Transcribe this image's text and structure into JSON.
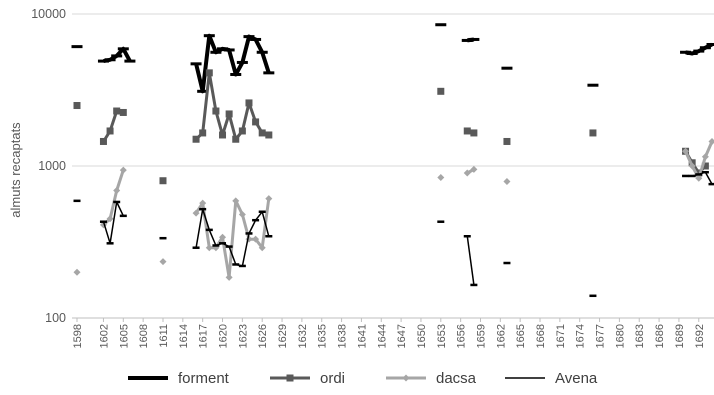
{
  "chart_data": {
    "type": "line",
    "ylabel": "almuts recaptats",
    "yscale": "log",
    "ylim": [
      100,
      10000
    ],
    "yticks": [
      "100",
      "1000",
      "10000"
    ],
    "xlim": [
      1598,
      1694
    ],
    "xtick_labels": [
      "1598",
      "1602",
      "1605",
      "1608",
      "1611",
      "1614",
      "1617",
      "1620",
      "1623",
      "1626",
      "1629",
      "1632",
      "1635",
      "1638",
      "1641",
      "1644",
      "1647",
      "1650",
      "1653",
      "1656",
      "1659",
      "1662",
      "1665",
      "1668",
      "1671",
      "1674",
      "1677",
      "1680",
      "1683",
      "1686",
      "1689",
      "1692"
    ],
    "grid": true,
    "legend_position": "bottom",
    "series": [
      {
        "name": "forment",
        "color": "#000000",
        "marker": "dash",
        "points": [
          [
            1598,
            6100
          ],
          [
            1602,
            4900
          ],
          [
            1603,
            5000
          ],
          [
            1604,
            5300
          ],
          [
            1605,
            5900
          ],
          [
            1606,
            4900
          ],
          [
            1616,
            4700
          ],
          [
            1617,
            3100
          ],
          [
            1618,
            7200
          ],
          [
            1619,
            5600
          ],
          [
            1620,
            5900
          ],
          [
            1621,
            5800
          ],
          [
            1622,
            4000
          ],
          [
            1623,
            4800
          ],
          [
            1624,
            7100
          ],
          [
            1625,
            6800
          ],
          [
            1626,
            5600
          ],
          [
            1627,
            4100
          ],
          [
            1653,
            8500
          ],
          [
            1657,
            6700
          ],
          [
            1658,
            6800
          ],
          [
            1663,
            4400
          ],
          [
            1676,
            3400
          ],
          [
            1690,
            5600
          ],
          [
            1691,
            5500
          ],
          [
            1692,
            5700
          ],
          [
            1693,
            6000
          ],
          [
            1694,
            6300
          ]
        ]
      },
      {
        "name": "ordi",
        "color": "#595959",
        "marker": "square",
        "points": [
          [
            1598,
            2500
          ],
          [
            1602,
            1450
          ],
          [
            1603,
            1700
          ],
          [
            1604,
            2300
          ],
          [
            1605,
            2250
          ],
          [
            1611,
            800
          ],
          [
            1616,
            1500
          ],
          [
            1617,
            1650
          ],
          [
            1618,
            4100
          ],
          [
            1619,
            2300
          ],
          [
            1620,
            1600
          ],
          [
            1621,
            2200
          ],
          [
            1622,
            1500
          ],
          [
            1623,
            1700
          ],
          [
            1624,
            2600
          ],
          [
            1625,
            1950
          ],
          [
            1626,
            1650
          ],
          [
            1627,
            1600
          ],
          [
            1653,
            3100
          ],
          [
            1657,
            1700
          ],
          [
            1658,
            1650
          ],
          [
            1663,
            1450
          ],
          [
            1676,
            1650
          ],
          [
            1690,
            1250
          ],
          [
            1691,
            1050
          ],
          [
            1692,
            900
          ],
          [
            1693,
            1000
          ]
        ]
      },
      {
        "name": "dacsa",
        "color": "#a6a6a6",
        "marker": "diamond",
        "points": [
          [
            1598,
            200
          ],
          [
            1602,
            410
          ],
          [
            1603,
            450
          ],
          [
            1604,
            690
          ],
          [
            1605,
            940
          ],
          [
            1611,
            235
          ],
          [
            1616,
            490
          ],
          [
            1617,
            570
          ],
          [
            1618,
            290
          ],
          [
            1619,
            290
          ],
          [
            1620,
            340
          ],
          [
            1621,
            185
          ],
          [
            1622,
            590
          ],
          [
            1623,
            480
          ],
          [
            1624,
            330
          ],
          [
            1625,
            330
          ],
          [
            1626,
            290
          ],
          [
            1627,
            610
          ],
          [
            1653,
            840
          ],
          [
            1657,
            900
          ],
          [
            1658,
            950
          ],
          [
            1663,
            790
          ],
          [
            1690,
            1250
          ],
          [
            1691,
            1000
          ],
          [
            1692,
            830
          ],
          [
            1693,
            1150
          ],
          [
            1694,
            1450
          ]
        ]
      },
      {
        "name": "Avena",
        "color": "#000000",
        "marker": "dash",
        "points": [
          [
            1598,
            590
          ],
          [
            1602,
            430
          ],
          [
            1603,
            310
          ],
          [
            1604,
            580
          ],
          [
            1605,
            470
          ],
          [
            1611,
            335
          ],
          [
            1616,
            290
          ],
          [
            1617,
            520
          ],
          [
            1618,
            380
          ],
          [
            1619,
            300
          ],
          [
            1620,
            310
          ],
          [
            1621,
            295
          ],
          [
            1622,
            225
          ],
          [
            1623,
            220
          ],
          [
            1624,
            360
          ],
          [
            1625,
            440
          ],
          [
            1626,
            500
          ],
          [
            1627,
            345
          ],
          [
            1653,
            430
          ],
          [
            1657,
            345
          ],
          [
            1658,
            165
          ],
          [
            1663,
            230
          ],
          [
            1676,
            140
          ],
          [
            1690,
            860
          ],
          [
            1691,
            860
          ],
          [
            1692,
            880
          ],
          [
            1693,
            910
          ],
          [
            1694,
            760
          ]
        ]
      }
    ]
  }
}
